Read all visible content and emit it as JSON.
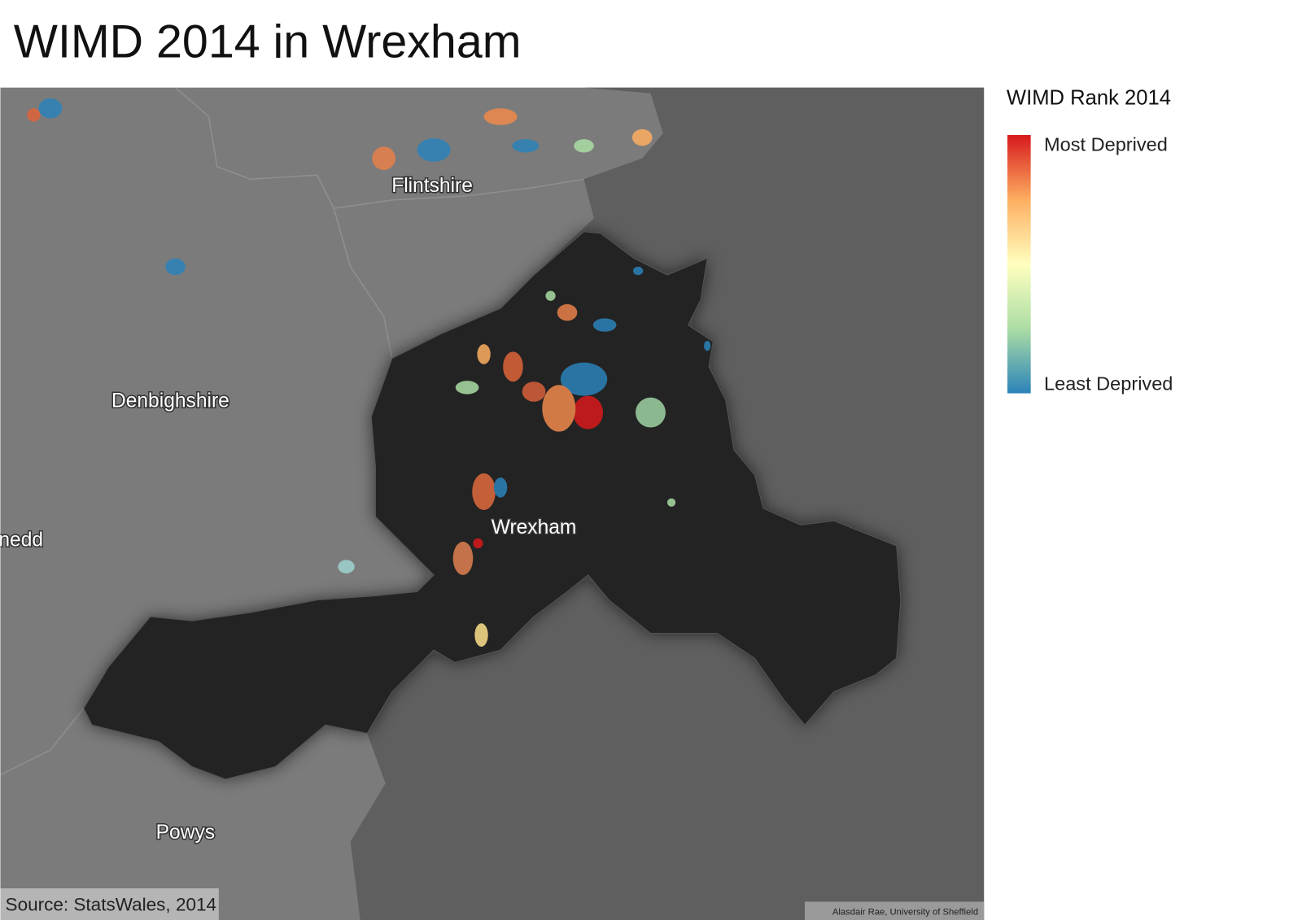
{
  "title": "WIMD 2014 in Wrexham",
  "legend": {
    "title": "WIMD Rank 2014",
    "top_label": "Most Deprived",
    "bottom_label": "Least Deprived"
  },
  "places": [
    "Flintshire",
    "Denbighshire",
    "Wrexham",
    "nedd",
    "Powys"
  ],
  "source": "Source: StatsWales, 2014",
  "credit": "Alasdair Rae, University of Sheffield"
}
